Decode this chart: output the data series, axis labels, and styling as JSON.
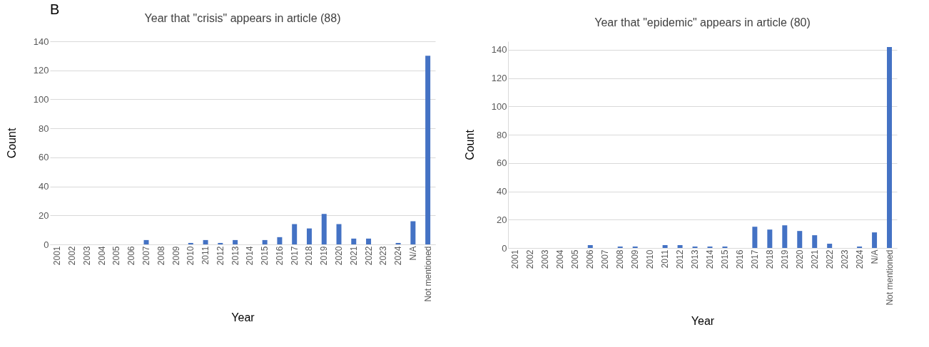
{
  "chart_data": [
    {
      "type": "bar",
      "title": "Year that \"crisis\" appears in article (88)",
      "xlabel": "Year",
      "ylabel": "Count",
      "annotations": [
        "B"
      ],
      "categories": [
        "2001",
        "2002",
        "2003",
        "2004",
        "2005",
        "2006",
        "2007",
        "2008",
        "2009",
        "2010",
        "2011",
        "2012",
        "2013",
        "2014",
        "2015",
        "2016",
        "2017",
        "2018",
        "2019",
        "2020",
        "2021",
        "2022",
        "2023",
        "2024",
        "N/A",
        "Not mentioned"
      ],
      "values": [
        0,
        0,
        0,
        0,
        0,
        0,
        3,
        0,
        0,
        1,
        3,
        1,
        3,
        0,
        3,
        5,
        14,
        11,
        21,
        14,
        4,
        4,
        0,
        1,
        16,
        130
      ],
      "color": "#4472c4",
      "ylim": [
        0,
        140
      ],
      "yticks": [
        0,
        20,
        40,
        60,
        80,
        100,
        120,
        140
      ],
      "grid": "y"
    },
    {
      "type": "bar",
      "title": "Year that \"epidemic\" appears in article (80)",
      "xlabel": "Year",
      "ylabel": "Count",
      "categories": [
        "2001",
        "2002",
        "2003",
        "2004",
        "2005",
        "2006",
        "2007",
        "2008",
        "2009",
        "2010",
        "2011",
        "2012",
        "2013",
        "2014",
        "2015",
        "2016",
        "2017",
        "2018",
        "2019",
        "2020",
        "2021",
        "2022",
        "2023",
        "2024",
        "N/A",
        "Not mentioned"
      ],
      "values": [
        0,
        0,
        0,
        0,
        0,
        2,
        0,
        1,
        1,
        0,
        2,
        2,
        1,
        1,
        1,
        0,
        15,
        13,
        16,
        12,
        9,
        3,
        0,
        1,
        11,
        142
      ],
      "color": "#4472c4",
      "ylim": [
        0,
        146
      ],
      "yticks": [
        0,
        20,
        40,
        60,
        80,
        100,
        120,
        140
      ],
      "grid": "y"
    }
  ]
}
